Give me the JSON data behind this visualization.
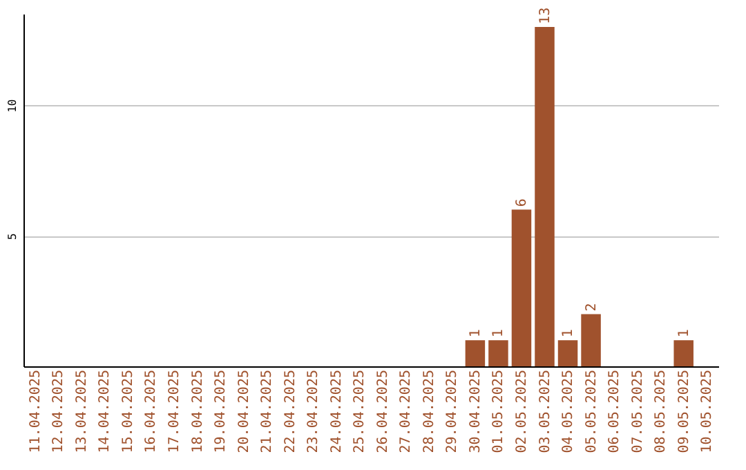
{
  "chart_data": {
    "type": "bar",
    "categories": [
      "11.04.2025",
      "12.04.2025",
      "13.04.2025",
      "14.04.2025",
      "15.04.2025",
      "16.04.2025",
      "17.04.2025",
      "18.04.2025",
      "19.04.2025",
      "20.04.2025",
      "21.04.2025",
      "22.04.2025",
      "23.04.2025",
      "24.04.2025",
      "25.04.2025",
      "26.04.2025",
      "27.04.2025",
      "28.04.2025",
      "29.04.2025",
      "30.04.2025",
      "01.05.2025",
      "02.05.2025",
      "03.05.2025",
      "04.05.2025",
      "05.05.2025",
      "06.05.2025",
      "07.05.2025",
      "08.05.2025",
      "09.05.2025",
      "10.05.2025"
    ],
    "values": [
      0,
      0,
      0,
      0,
      0,
      0,
      0,
      0,
      0,
      0,
      0,
      0,
      0,
      0,
      0,
      0,
      0,
      0,
      0,
      1,
      1,
      6,
      13,
      1,
      2,
      0,
      0,
      0,
      1,
      0
    ],
    "value_labels": [
      null,
      null,
      null,
      null,
      null,
      null,
      null,
      null,
      null,
      null,
      null,
      null,
      null,
      null,
      null,
      null,
      null,
      null,
      null,
      "1",
      "1",
      "6",
      "13",
      "1",
      "2",
      null,
      null,
      null,
      "1",
      null
    ],
    "color": "#a0522d",
    "ylim": [
      0,
      13.5
    ],
    "yticks": [
      5,
      10
    ],
    "grid": "y"
  }
}
